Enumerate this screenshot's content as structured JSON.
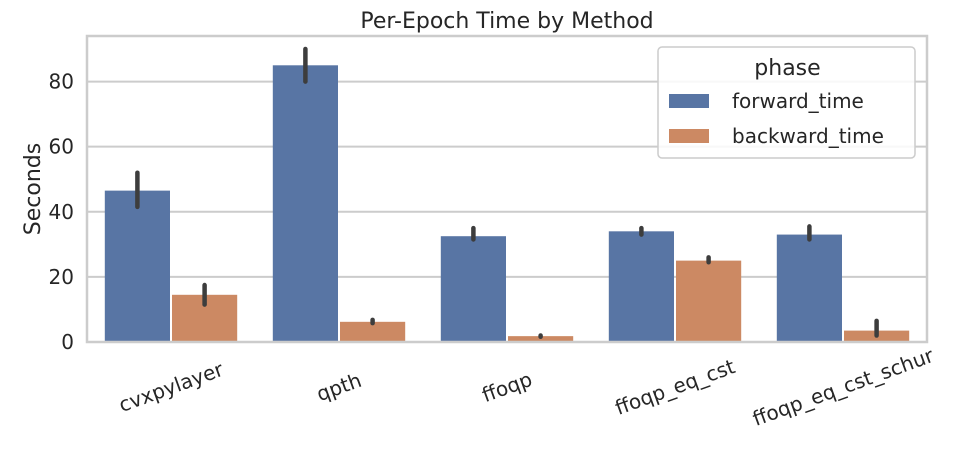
{
  "chart_data": {
    "type": "bar",
    "title": "Per-Epoch Time by Method",
    "xlabel": "",
    "ylabel": "Seconds",
    "ylim": [
      0,
      94
    ],
    "yticks": [
      0,
      20,
      40,
      60,
      80
    ],
    "grid": true,
    "categories": [
      "cvxpylayer",
      "qpth",
      "ffoqp",
      "ffoqp_eq_cst",
      "ffoqp_eq_cst_schur"
    ],
    "legend": {
      "title": "phase",
      "placement": "top-right"
    },
    "series": [
      {
        "name": "forward_time",
        "color": "#5875a4",
        "values": [
          46.5,
          85.0,
          32.5,
          34.0,
          33.0
        ],
        "err_low": [
          41.5,
          80.0,
          31.5,
          33.0,
          31.5
        ],
        "err_high": [
          52.0,
          90.0,
          35.0,
          35.0,
          35.5
        ]
      },
      {
        "name": "backward_time",
        "color": "#cc8963",
        "values": [
          14.5,
          6.2,
          1.8,
          25.0,
          3.5
        ],
        "err_low": [
          11.5,
          5.8,
          1.6,
          24.5,
          2.0
        ],
        "err_high": [
          17.5,
          6.8,
          2.0,
          26.0,
          6.5
        ]
      }
    ]
  }
}
